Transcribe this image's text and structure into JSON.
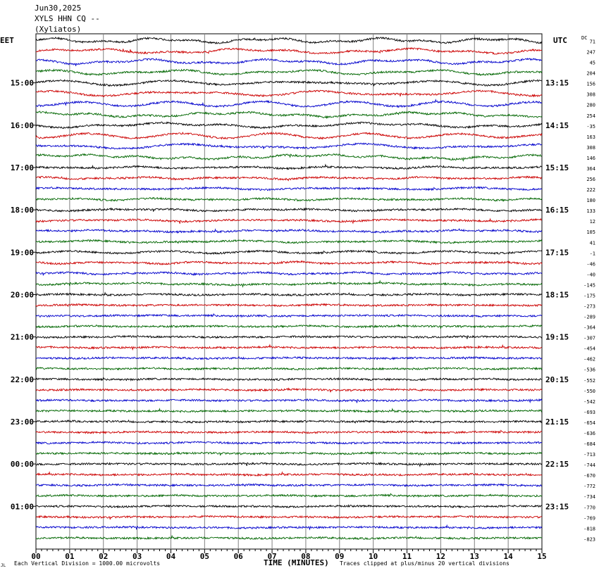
{
  "header": {
    "date": "Jun30,2025",
    "station": "XYLS HHN CQ --",
    "location": "(Xyliatos)"
  },
  "footer": {
    "scale_note": "Each Vertical Division = 1000.00 microvolts",
    "clip_note": "Traces clipped at plus/minus 20 vertical divisions",
    "corner_mark": "JL"
  },
  "colors": {
    "trace_cycle": [
      "#000000",
      "#cc0000",
      "#0000cc",
      "#006600"
    ],
    "grid": "#808080"
  },
  "chart_data": {
    "type": "line",
    "xlabel": "TIME (MINUTES)",
    "x_ticks": [
      "00",
      "01",
      "02",
      "03",
      "04",
      "05",
      "06",
      "07",
      "08",
      "09",
      "10",
      "11",
      "12",
      "13",
      "14",
      "15"
    ],
    "xlim": [
      0,
      15
    ],
    "left_axis_title": "EET",
    "right_axis_title": "UTC",
    "dc_header": "DC",
    "left_hour_labels": [
      "15:00",
      "16:00",
      "17:00",
      "18:00",
      "19:00",
      "20:00",
      "21:00",
      "22:00",
      "23:00",
      "00:00",
      "01:00"
    ],
    "right_hour_labels": [
      "13:15",
      "14:15",
      "15:15",
      "16:15",
      "17:15",
      "18:15",
      "19:15",
      "20:15",
      "21:15",
      "22:15",
      "23:15"
    ],
    "dc_offsets": [
      71,
      247,
      45,
      204,
      156,
      308,
      280,
      254,
      -35,
      163,
      308,
      146,
      364,
      256,
      222,
      180,
      133,
      12,
      105,
      41,
      -1,
      -46,
      -40,
      -145,
      -175,
      -273,
      -289,
      -364,
      -307,
      -454,
      -462,
      -536,
      -552,
      -550,
      -542,
      -693,
      -654,
      -636,
      -684,
      -713,
      -744,
      -670,
      -772,
      -734,
      -770,
      -769,
      -818,
      -823
    ]
  }
}
